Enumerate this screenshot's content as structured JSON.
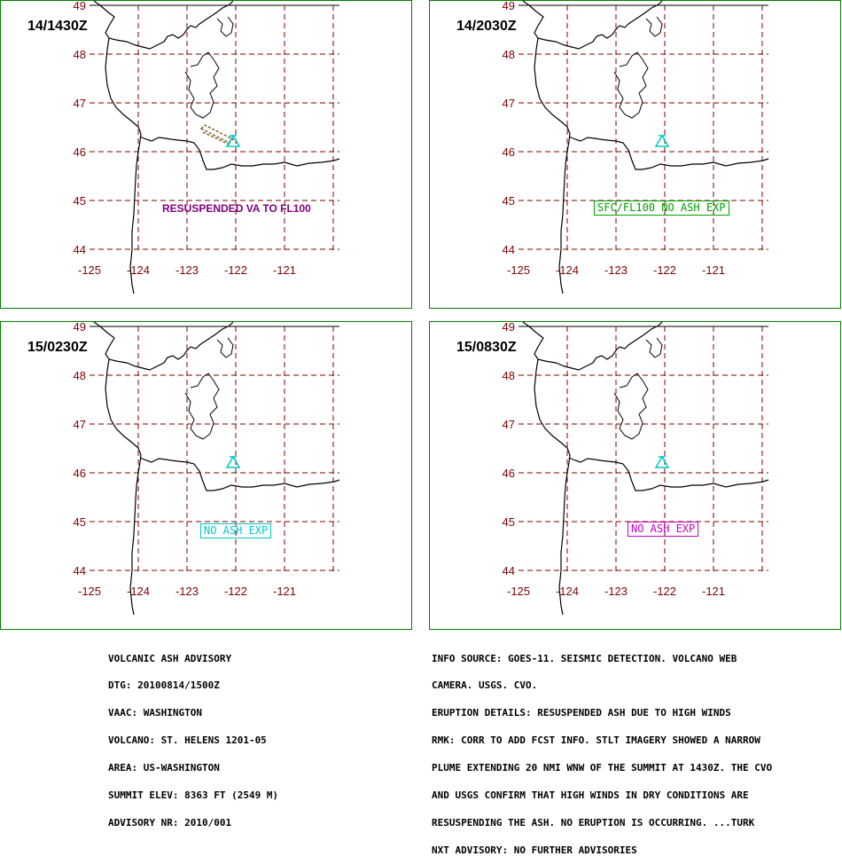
{
  "panels": [
    {
      "time": "14/1430Z",
      "note": "RESUSPENDED VA TO FL100",
      "note_color": "#800080",
      "note_boxed": false,
      "show_plume": true
    },
    {
      "time": "14/2030Z",
      "note": "SFC/FL100 NO ASH EXP",
      "note_color": "#00a000",
      "note_boxed": true,
      "show_plume": false
    },
    {
      "time": "15/0230Z",
      "note": "NO ASH EXP",
      "note_color": "#00c8c8",
      "note_boxed": true,
      "show_plume": false
    },
    {
      "time": "15/0830Z",
      "note": "NO ASH EXP",
      "note_color": "#c800c8",
      "note_boxed": true,
      "show_plume": false
    }
  ],
  "map": {
    "lat_labels": [
      "49",
      "48",
      "47",
      "46",
      "45",
      "44"
    ],
    "lon_labels": [
      "-125",
      "-124",
      "-123",
      "-122",
      "-121"
    ],
    "grid_color": "#800000",
    "coast_color": "#000000",
    "volcano_color": "#00c8c8",
    "plume_color": "#8b5a2b"
  },
  "advisory_left": [
    "VOLCANIC ASH ADVISORY",
    "DTG: 20100814/1500Z",
    "VAAC: WASHINGTON",
    "VOLCANO: ST. HELENS 1201-05",
    "AREA: US-WASHINGTON",
    "SUMMIT ELEV: 8363 FT (2549 M)",
    "ADVISORY NR: 2010/001"
  ],
  "advisory_right": [
    "INFO SOURCE: GOES-11. SEISMIC DETECTION. VOLCANO WEB",
    "CAMERA. USGS. CVO.",
    "ERUPTION DETAILS: RESUSPENDED ASH DUE TO HIGH WINDS",
    "RMK: CORR TO ADD FCST INFO. STLT IMAGERY SHOWED A NARROW",
    "PLUME EXTENDING 20 NMI WNW OF THE SUMMIT AT 1430Z. THE CVO",
    "AND USGS CONFIRM THAT HIGH WINDS IN DRY CONDITIONS ARE",
    "RESUSPENDING THE ASH. NO ERUPTION IS OCCURRING. ...TURK",
    "NXT ADVISORY: NO FURTHER ADVISORIES"
  ]
}
